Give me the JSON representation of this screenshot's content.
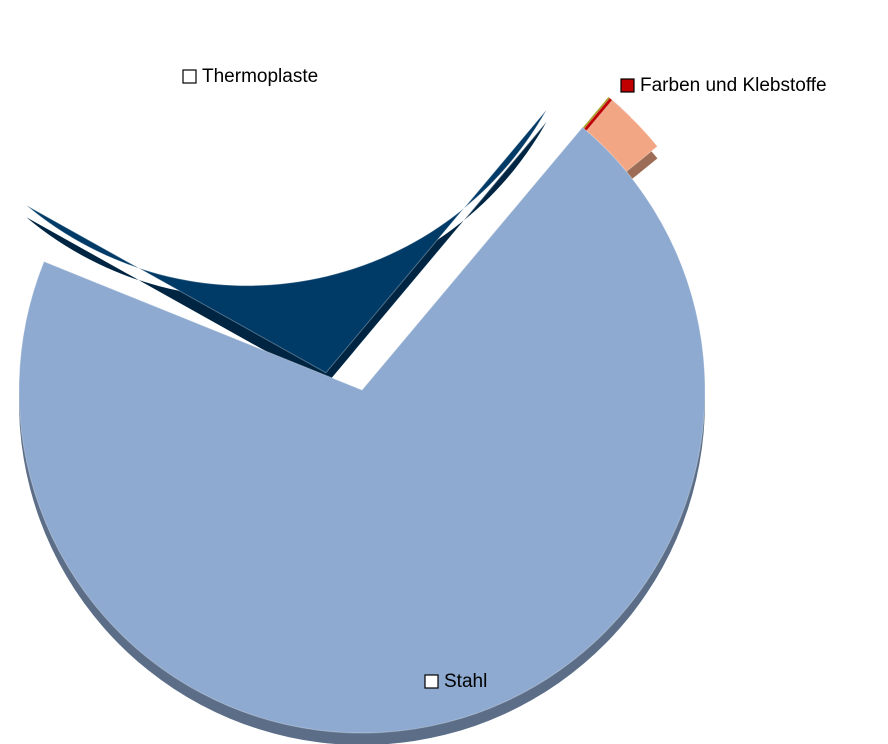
{
  "chart_data": {
    "type": "pie",
    "categories": [
      null,
      "Farben und Klebstoffe",
      null,
      "Stahl",
      null,
      "Thermoplaste"
    ],
    "values": [
      0.3,
      1,
      1.7,
      67,
      2,
      28
    ],
    "colors": [
      "#9a9a10",
      "#c00000",
      "#f2a684",
      "#8eaad0",
      "#003a66",
      "#f2f200"
    ]
  }
}
